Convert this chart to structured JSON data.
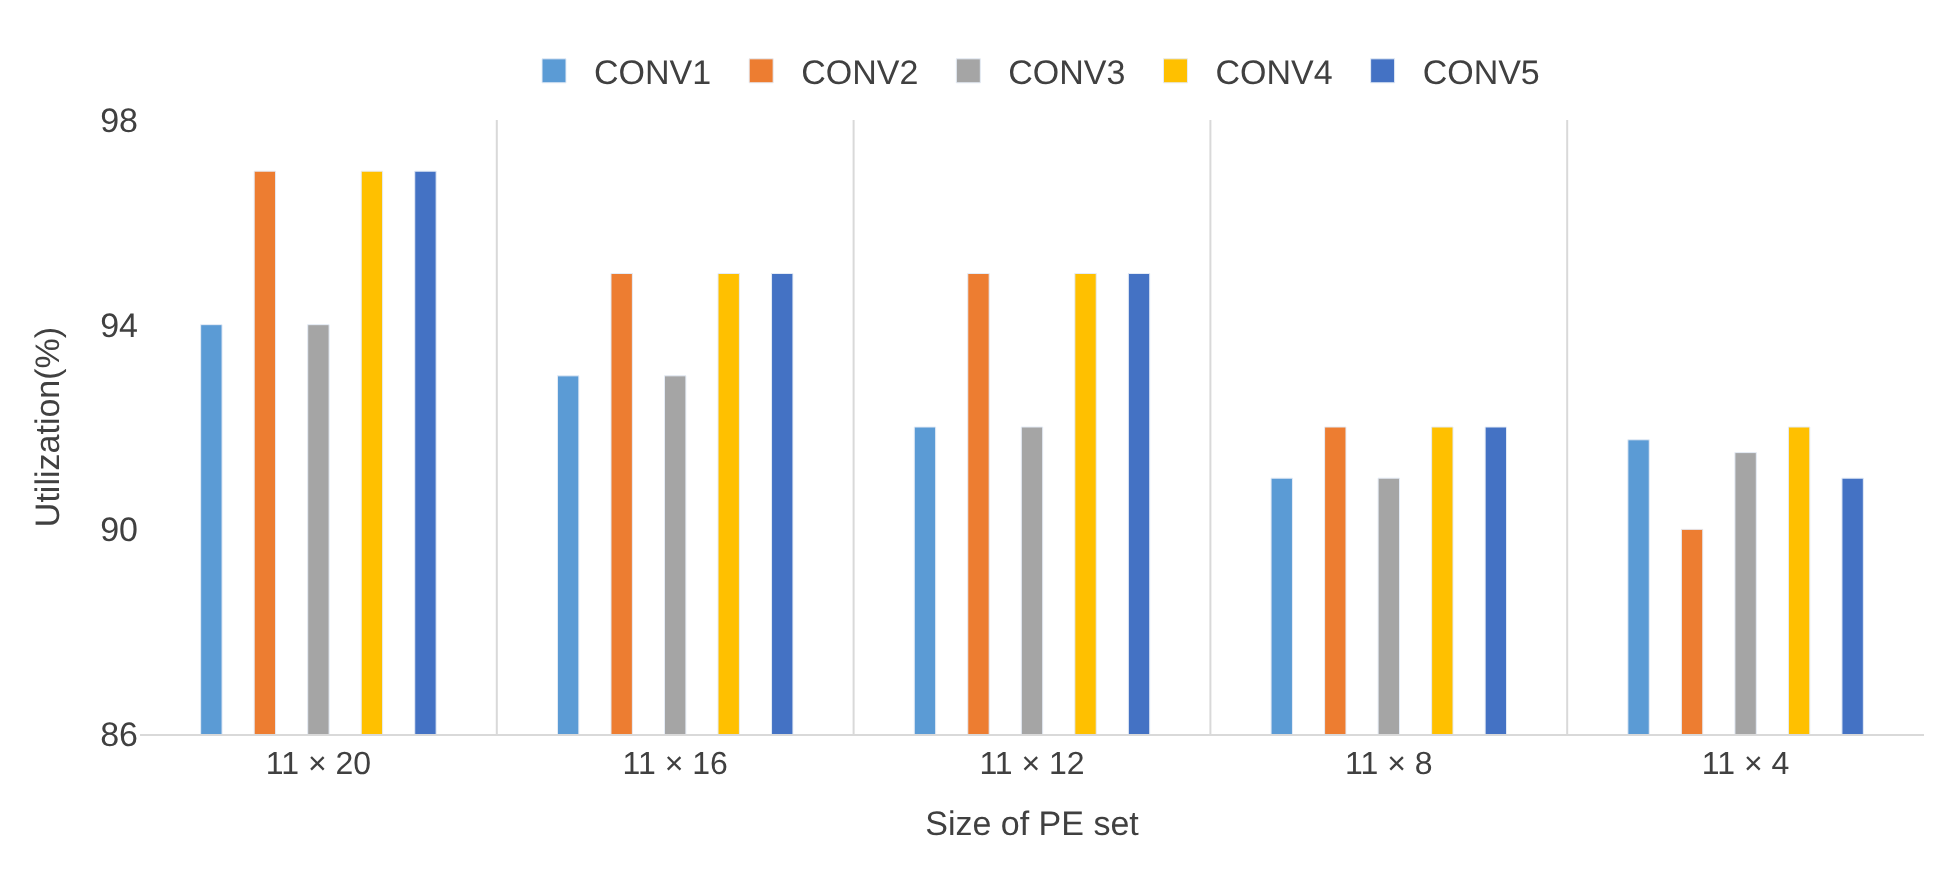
{
  "chart_data": {
    "type": "bar",
    "xlabel": "Size of PE set",
    "ylabel": "Utilization(%)",
    "categories": [
      "11 × 20",
      "11 × 16",
      "11 × 12",
      "11 × 8",
      "11 × 4"
    ],
    "series": [
      {
        "name": "CONV1",
        "color": "#5b9bd5",
        "values": [
          94,
          93,
          92,
          91,
          91.75
        ]
      },
      {
        "name": "CONV2",
        "color": "#ed7d31",
        "values": [
          97,
          95,
          95,
          92,
          90
        ]
      },
      {
        "name": "CONV3",
        "color": "#a5a5a5",
        "values": [
          94,
          93,
          92,
          91,
          91.5
        ]
      },
      {
        "name": "CONV4",
        "color": "#ffc000",
        "values": [
          97,
          95,
          95,
          92,
          92
        ]
      },
      {
        "name": "CONV5",
        "color": "#4472c4",
        "values": [
          97,
          95,
          95,
          92,
          91
        ]
      }
    ],
    "ylim": [
      86,
      98
    ],
    "yticks": [
      86,
      90,
      94,
      98
    ],
    "grid": "x",
    "legend": "top"
  }
}
